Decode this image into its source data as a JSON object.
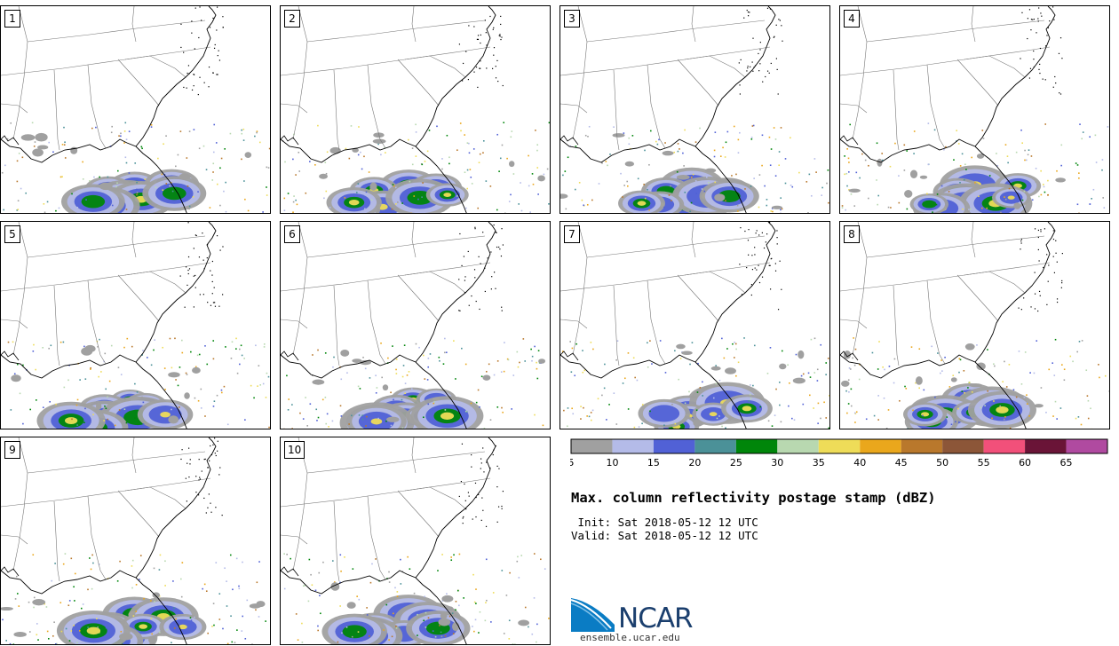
{
  "title": "Max. column reflectivity postage stamp (dBZ)",
  "init_line": " Init: Sat 2018-05-12 12 UTC",
  "valid_line": "Valid: Sat 2018-05-12 12 UTC",
  "panels": [
    "1",
    "2",
    "3",
    "4",
    "5",
    "6",
    "7",
    "8",
    "9",
    "10"
  ],
  "colorbar": {
    "ticks": [
      "5",
      "10",
      "15",
      "20",
      "25",
      "30",
      "35",
      "40",
      "45",
      "50",
      "55",
      "60",
      "65"
    ],
    "colors": [
      "#a0a0a0",
      "#b4bbe8",
      "#5161d6",
      "#4b9198",
      "#00860a",
      "#b8d8b0",
      "#eedc58",
      "#eaa71c",
      "#b9782c",
      "#8c5638",
      "#f2507a",
      "#6a1437",
      "#b04aa0"
    ]
  },
  "logo": {
    "name": "NCAR",
    "url": "ensemble.ucar.edu"
  }
}
